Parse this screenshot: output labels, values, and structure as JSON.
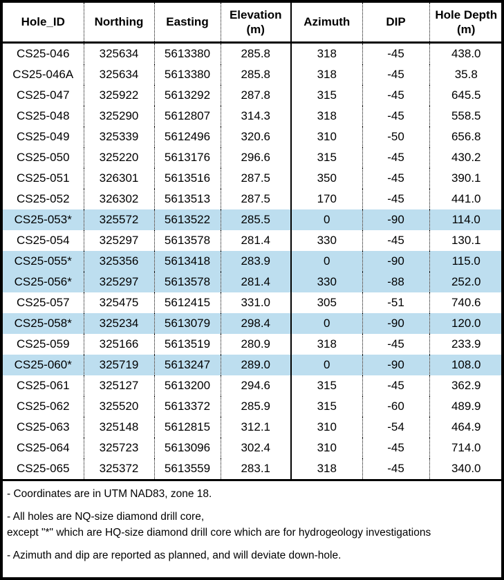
{
  "colors": {
    "highlight": "#BDDEEF",
    "border": "#000000",
    "text": "#000000"
  },
  "table": {
    "columns": [
      {
        "key": "hole_id",
        "label": "Hole_ID",
        "label2": ""
      },
      {
        "key": "northing",
        "label": "Northing",
        "label2": ""
      },
      {
        "key": "easting",
        "label": "Easting",
        "label2": ""
      },
      {
        "key": "elevation",
        "label": "Elevation",
        "label2": "(m)"
      },
      {
        "key": "azimuth",
        "label": "Azimuth",
        "label2": ""
      },
      {
        "key": "dip",
        "label": "DIP",
        "label2": ""
      },
      {
        "key": "hole_depth",
        "label": "Hole Depth",
        "label2": "(m)"
      }
    ],
    "rows": [
      {
        "hole_id": "CS25-046",
        "northing": "325634",
        "easting": "5613380",
        "elevation": "285.8",
        "azimuth": "318",
        "dip": "-45",
        "hole_depth": "438.0",
        "highlighted": false
      },
      {
        "hole_id": "CS25-046A",
        "northing": "325634",
        "easting": "5613380",
        "elevation": "285.8",
        "azimuth": "318",
        "dip": "-45",
        "hole_depth": "35.8",
        "highlighted": false
      },
      {
        "hole_id": "CS25-047",
        "northing": "325922",
        "easting": "5613292",
        "elevation": "287.8",
        "azimuth": "315",
        "dip": "-45",
        "hole_depth": "645.5",
        "highlighted": false
      },
      {
        "hole_id": "CS25-048",
        "northing": "325290",
        "easting": "5612807",
        "elevation": "314.3",
        "azimuth": "318",
        "dip": "-45",
        "hole_depth": "558.5",
        "highlighted": false
      },
      {
        "hole_id": "CS25-049",
        "northing": "325339",
        "easting": "5612496",
        "elevation": "320.6",
        "azimuth": "310",
        "dip": "-50",
        "hole_depth": "656.8",
        "highlighted": false
      },
      {
        "hole_id": "CS25-050",
        "northing": "325220",
        "easting": "5613176",
        "elevation": "296.6",
        "azimuth": "315",
        "dip": "-45",
        "hole_depth": "430.2",
        "highlighted": false
      },
      {
        "hole_id": "CS25-051",
        "northing": "326301",
        "easting": "5613516",
        "elevation": "287.5",
        "azimuth": "350",
        "dip": "-45",
        "hole_depth": "390.1",
        "highlighted": false
      },
      {
        "hole_id": "CS25-052",
        "northing": "326302",
        "easting": "5613513",
        "elevation": "287.5",
        "azimuth": "170",
        "dip": "-45",
        "hole_depth": "441.0",
        "highlighted": false
      },
      {
        "hole_id": "CS25-053*",
        "northing": "325572",
        "easting": "5613522",
        "elevation": "285.5",
        "azimuth": "0",
        "dip": "-90",
        "hole_depth": "114.0",
        "highlighted": true
      },
      {
        "hole_id": "CS25-054",
        "northing": "325297",
        "easting": "5613578",
        "elevation": "281.4",
        "azimuth": "330",
        "dip": "-45",
        "hole_depth": "130.1",
        "highlighted": false
      },
      {
        "hole_id": "CS25-055*",
        "northing": "325356",
        "easting": "5613418",
        "elevation": "283.9",
        "azimuth": "0",
        "dip": "-90",
        "hole_depth": "115.0",
        "highlighted": true
      },
      {
        "hole_id": "CS25-056*",
        "northing": "325297",
        "easting": "5613578",
        "elevation": "281.4",
        "azimuth": "330",
        "dip": "-88",
        "hole_depth": "252.0",
        "highlighted": true
      },
      {
        "hole_id": "CS25-057",
        "northing": "325475",
        "easting": "5612415",
        "elevation": "331.0",
        "azimuth": "305",
        "dip": "-51",
        "hole_depth": "740.6",
        "highlighted": false
      },
      {
        "hole_id": "CS25-058*",
        "northing": "325234",
        "easting": "5613079",
        "elevation": "298.4",
        "azimuth": "0",
        "dip": "-90",
        "hole_depth": "120.0",
        "highlighted": true
      },
      {
        "hole_id": "CS25-059",
        "northing": "325166",
        "easting": "5613519",
        "elevation": "280.9",
        "azimuth": "318",
        "dip": "-45",
        "hole_depth": "233.9",
        "highlighted": false
      },
      {
        "hole_id": "CS25-060*",
        "northing": "325719",
        "easting": "5613247",
        "elevation": "289.0",
        "azimuth": "0",
        "dip": "-90",
        "hole_depth": "108.0",
        "highlighted": true
      },
      {
        "hole_id": "CS25-061",
        "northing": "325127",
        "easting": "5613200",
        "elevation": "294.6",
        "azimuth": "315",
        "dip": "-45",
        "hole_depth": "362.9",
        "highlighted": false
      },
      {
        "hole_id": "CS25-062",
        "northing": "325520",
        "easting": "5613372",
        "elevation": "285.9",
        "azimuth": "315",
        "dip": "-60",
        "hole_depth": "489.9",
        "highlighted": false
      },
      {
        "hole_id": "CS25-063",
        "northing": "325148",
        "easting": "5612815",
        "elevation": "312.1",
        "azimuth": "310",
        "dip": "-54",
        "hole_depth": "464.9",
        "highlighted": false
      },
      {
        "hole_id": "CS25-064",
        "northing": "325723",
        "easting": "5613096",
        "elevation": "302.4",
        "azimuth": "310",
        "dip": "-45",
        "hole_depth": "714.0",
        "highlighted": false
      },
      {
        "hole_id": "CS25-065",
        "northing": "325372",
        "easting": "5613559",
        "elevation": "283.1",
        "azimuth": "318",
        "dip": "-45",
        "hole_depth": "340.0",
        "highlighted": false
      }
    ]
  },
  "notes": [
    "- Coordinates are in UTM NAD83, zone 18.",
    "- All holes are NQ-size diamond drill core,",
    "except \"*\" which are HQ-size diamond drill core which are for hydrogeology investigations",
    "- Azimuth and dip are reported as planned, and will deviate down-hole."
  ]
}
